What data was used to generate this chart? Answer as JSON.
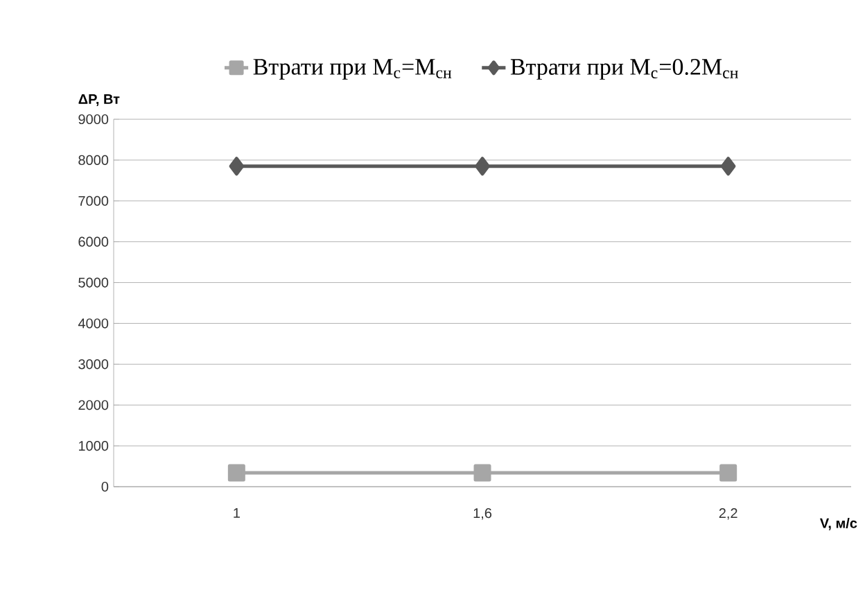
{
  "chart_data": {
    "type": "line",
    "xlabel": "V, м/с",
    "ylabel": "ΔP, Вт",
    "categories": [
      "1",
      "1,6",
      "2,2"
    ],
    "series": [
      {
        "name": "Втрати при M$_{с}$=M$_{сн}$",
        "color": "#a6a6a6",
        "marker": "square",
        "values": [
          340,
          340,
          340
        ]
      },
      {
        "name": "Втрати при M$_{с}$=0.2M$_{сн}$",
        "color": "#595959",
        "marker": "diamond",
        "values": [
          7850,
          7850,
          7850
        ]
      }
    ],
    "ylim": [
      0,
      9000
    ],
    "yticks": [
      0,
      1000,
      2000,
      3000,
      4000,
      5000,
      6000,
      7000,
      8000,
      9000
    ],
    "grid": "y",
    "legend": "top"
  }
}
